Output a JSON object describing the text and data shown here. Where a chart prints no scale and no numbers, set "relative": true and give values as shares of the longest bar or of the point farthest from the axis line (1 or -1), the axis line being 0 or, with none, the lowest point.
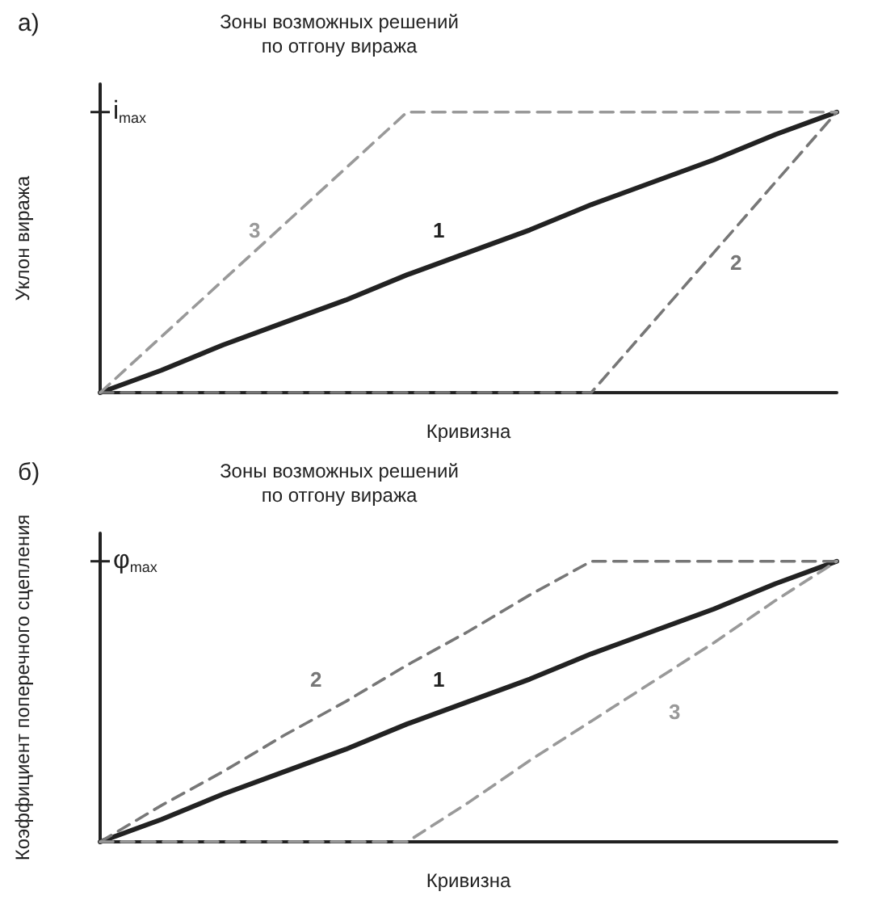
{
  "chart_data": [
    {
      "type": "line",
      "title": "а)",
      "xlabel": "Кривизна",
      "ylabel": "Уклон виража",
      "relative": true,
      "grid": false,
      "legend": false,
      "marker": "none",
      "annotations": [
        "i$_{max}$",
        "Зоны возможных решений\nпо отгону виража"
      ],
      "categories": [
        null,
        null,
        null,
        null,
        null,
        null,
        null,
        null,
        null,
        null,
        null,
        null,
        null
      ],
      "series": [
        {
          "name": "1",
          "color": "#222222",
          "line_style": "solid",
          "values": [
            0,
            0.08,
            0.17,
            0.25,
            0.33,
            0.42,
            0.5,
            0.58,
            0.67,
            0.75,
            0.83,
            0.92,
            1
          ]
        },
        {
          "name": "2",
          "color": "#777777",
          "line_style": "dashed",
          "values": [
            0,
            0,
            0,
            0,
            0,
            0,
            0,
            0,
            0,
            0.25,
            0.5,
            0.75,
            1
          ]
        },
        {
          "name": "3",
          "color": "#999999",
          "line_style": "dashed",
          "values": [
            0,
            0.2,
            0.4,
            0.6,
            0.8,
            1,
            1,
            1,
            1,
            1,
            1,
            1,
            1
          ]
        }
      ]
    },
    {
      "type": "line",
      "title": "б)",
      "xlabel": "Кривизна",
      "ylabel": "Коэффициент поперечного сцепления",
      "relative": true,
      "grid": false,
      "legend": false,
      "marker": "none",
      "annotations": [
        "φ$_{max}$",
        "Зоны возможных решений\nпо отгону виража"
      ],
      "categories": [
        null,
        null,
        null,
        null,
        null,
        null,
        null,
        null,
        null,
        null,
        null,
        null,
        null
      ],
      "series": [
        {
          "name": "1",
          "color": "#222222",
          "line_style": "solid",
          "values": [
            0,
            0.08,
            0.17,
            0.25,
            0.33,
            0.42,
            0.5,
            0.58,
            0.67,
            0.75,
            0.83,
            0.92,
            1
          ]
        },
        {
          "name": "2",
          "color": "#777777",
          "line_style": "dashed",
          "values": [
            0,
            0.13,
            0.25,
            0.38,
            0.5,
            0.63,
            0.75,
            0.88,
            1,
            1,
            1,
            1,
            1
          ]
        },
        {
          "name": "3",
          "color": "#999999",
          "line_style": "dashed",
          "values": [
            0,
            0,
            0,
            0,
            0,
            0,
            0.14,
            0.29,
            0.43,
            0.57,
            0.71,
            0.86,
            1
          ]
        }
      ]
    }
  ]
}
